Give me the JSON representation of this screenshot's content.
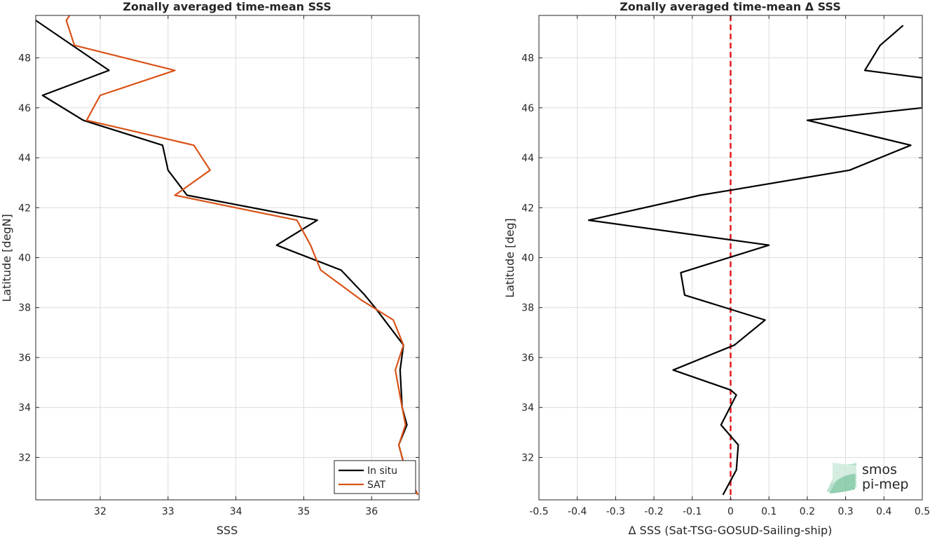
{
  "chart_data": [
    {
      "type": "line",
      "title": "Zonally averaged time-mean SSS",
      "xlabel": "SSS",
      "ylabel": "Latitude [degN]",
      "xlim": [
        31.05,
        36.7
      ],
      "ylim": [
        30.3,
        49.7
      ],
      "xticks": [
        32,
        33,
        34,
        35,
        36
      ],
      "yticks": [
        32,
        34,
        36,
        38,
        40,
        42,
        44,
        46,
        48
      ],
      "grid": true,
      "legend": "bottom-right",
      "series": [
        {
          "name": "In situ",
          "color": "#000000",
          "points": [
            [
              31.05,
              49.5
            ],
            [
              32.13,
              47.5
            ],
            [
              31.15,
              46.5
            ],
            [
              31.75,
              45.5
            ],
            [
              32.92,
              44.5
            ],
            [
              33.0,
              43.5
            ],
            [
              33.28,
              42.5
            ],
            [
              35.2,
              41.5
            ],
            [
              34.6,
              40.5
            ],
            [
              35.55,
              39.5
            ],
            [
              35.9,
              38.5
            ],
            [
              36.05,
              38.0
            ],
            [
              36.47,
              36.5
            ],
            [
              36.42,
              35.5
            ],
            [
              36.45,
              34.0
            ],
            [
              36.52,
              33.3
            ],
            [
              36.4,
              32.5
            ],
            [
              36.5,
              31.5
            ],
            [
              36.68,
              30.5
            ]
          ]
        },
        {
          "name": "SAT",
          "color": "#D95319",
          "points": [
            [
              31.55,
              49.7
            ],
            [
              31.5,
              49.5
            ],
            [
              31.62,
              48.5
            ],
            [
              33.1,
              47.5
            ],
            [
              32.0,
              46.5
            ],
            [
              31.8,
              45.5
            ],
            [
              33.38,
              44.5
            ],
            [
              33.62,
              43.5
            ],
            [
              33.1,
              42.5
            ],
            [
              34.9,
              41.5
            ],
            [
              35.1,
              40.5
            ],
            [
              35.25,
              39.5
            ],
            [
              35.85,
              38.3
            ],
            [
              36.32,
              37.5
            ],
            [
              36.47,
              36.5
            ],
            [
              36.35,
              35.5
            ],
            [
              36.45,
              34.0
            ],
            [
              36.5,
              33.3
            ],
            [
              36.4,
              32.5
            ],
            [
              36.5,
              31.5
            ],
            [
              36.68,
              30.5
            ]
          ]
        }
      ]
    },
    {
      "type": "line",
      "title": "Zonally averaged time-mean Δ SSS",
      "xlabel": "Δ SSS (Sat-TSG-GOSUD-Sailing-ship)",
      "ylabel": "Latitude [deg]",
      "xlim": [
        -0.5,
        0.5
      ],
      "ylim": [
        30.3,
        49.7
      ],
      "xticks": [
        -0.5,
        -0.4,
        -0.3,
        -0.2,
        -0.1,
        0,
        0.1,
        0.2,
        0.3,
        0.4,
        0.5
      ],
      "yticks": [
        32,
        34,
        36,
        38,
        40,
        42,
        44,
        46,
        48
      ],
      "grid": true,
      "reference_line": {
        "x": 0,
        "color": "#E41A1C",
        "style": "dashed"
      },
      "series": [
        {
          "color": "#000000",
          "points": [
            [
              0.45,
              49.3
            ],
            [
              0.39,
              48.5
            ],
            [
              0.35,
              47.5
            ],
            [
              0.5,
              47.2
            ],
            [
              0.5,
              46.0
            ],
            [
              0.2,
              45.5
            ],
            [
              0.47,
              44.5
            ],
            [
              0.31,
              43.5
            ],
            [
              0.0,
              42.7
            ],
            [
              -0.08,
              42.5
            ],
            [
              -0.37,
              41.5
            ],
            [
              0.1,
              40.5
            ],
            [
              -0.13,
              39.4
            ],
            [
              -0.12,
              38.5
            ],
            [
              0.09,
              37.5
            ],
            [
              0.01,
              36.5
            ],
            [
              -0.15,
              35.5
            ],
            [
              0.0,
              34.7
            ],
            [
              0.015,
              34.5
            ],
            [
              -0.025,
              33.3
            ],
            [
              0.02,
              32.5
            ],
            [
              0.015,
              31.5
            ],
            [
              -0.02,
              30.5
            ]
          ]
        }
      ]
    }
  ],
  "watermark": {
    "line1": "smos",
    "line2": "pi-mep"
  }
}
